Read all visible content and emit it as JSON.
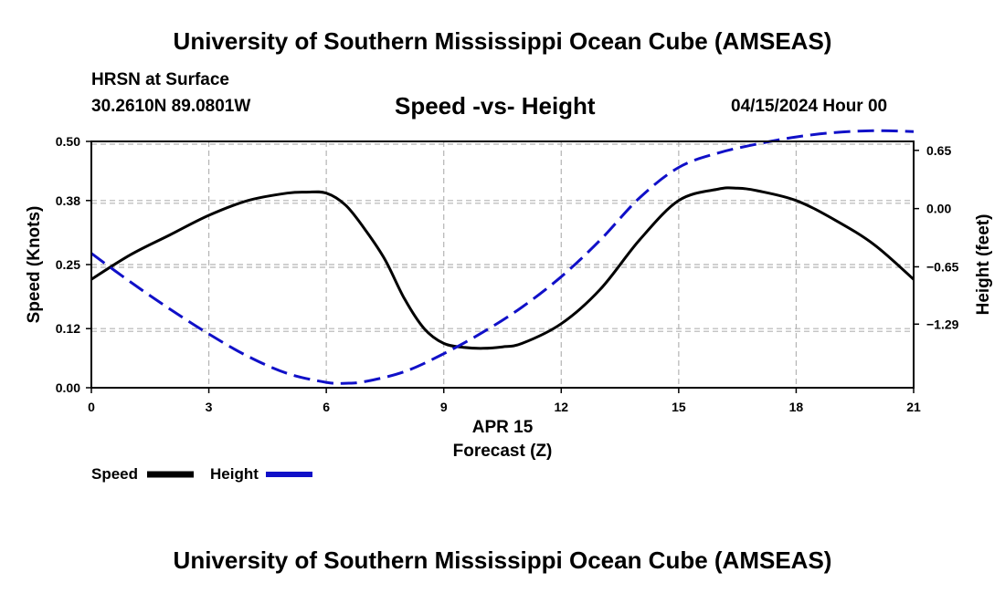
{
  "page": {
    "title_top": "University of Southern Mississippi Ocean Cube (AMSEAS)",
    "title_bottom": "University of Southern Mississippi Ocean Cube (AMSEAS)",
    "station": "HRSN at Surface",
    "coords": "30.2610N  89.0801W",
    "datetime": "04/15/2024 Hour 00"
  },
  "chart_data": {
    "type": "line",
    "title": "Speed -vs- Height",
    "xlabel": "Forecast (Z)",
    "xlabel_date": "APR 15",
    "ylabel": "Speed (Knots)",
    "y2label": "Height (feet)",
    "xlim": [
      0,
      21
    ],
    "ylim": [
      0,
      0.5
    ],
    "y2lim": [
      -2.0,
      0.75
    ],
    "x_ticks": [
      "0",
      "3",
      "6",
      "9",
      "12",
      "15",
      "18",
      "21"
    ],
    "y_ticks": [
      "0.00",
      "0.12",
      "0.25",
      "0.38",
      "0.50"
    ],
    "y2_ticks": [
      "0.65",
      "0.00",
      "-0.65",
      "-1.29"
    ],
    "grid": true,
    "colors": {
      "speed": "#000000",
      "height": "#1010c8",
      "grid": "#b4b4b4"
    },
    "series": [
      {
        "name": "Speed",
        "axis": "left",
        "style": "solid",
        "x": [
          0,
          1,
          2,
          3,
          4,
          5,
          5.5,
          6,
          6.5,
          7,
          7.5,
          8,
          8.5,
          9,
          9.5,
          10,
          10.5,
          11,
          12,
          13,
          14,
          15,
          16,
          16.5,
          17,
          18,
          19,
          20,
          21
        ],
        "values": [
          0.22,
          0.27,
          0.31,
          0.35,
          0.38,
          0.395,
          0.397,
          0.395,
          0.37,
          0.32,
          0.26,
          0.18,
          0.12,
          0.09,
          0.082,
          0.08,
          0.083,
          0.09,
          0.13,
          0.2,
          0.3,
          0.38,
          0.403,
          0.405,
          0.4,
          0.38,
          0.34,
          0.29,
          0.22
        ]
      },
      {
        "name": "Height",
        "axis": "right",
        "style": "dashed",
        "x": [
          0,
          1,
          2,
          3,
          4,
          5,
          6,
          6.5,
          7,
          8,
          9,
          10,
          11,
          12,
          13,
          14,
          15,
          16,
          17,
          18,
          19,
          20,
          21
        ],
        "values": [
          -0.5,
          -0.82,
          -1.12,
          -1.4,
          -1.65,
          -1.84,
          -1.94,
          -1.95,
          -1.93,
          -1.82,
          -1.62,
          -1.38,
          -1.1,
          -0.76,
          -0.35,
          0.12,
          0.46,
          0.62,
          0.72,
          0.8,
          0.85,
          0.87,
          0.86
        ]
      }
    ],
    "legend": [
      {
        "label": "Speed"
      },
      {
        "label": "Height"
      }
    ]
  }
}
